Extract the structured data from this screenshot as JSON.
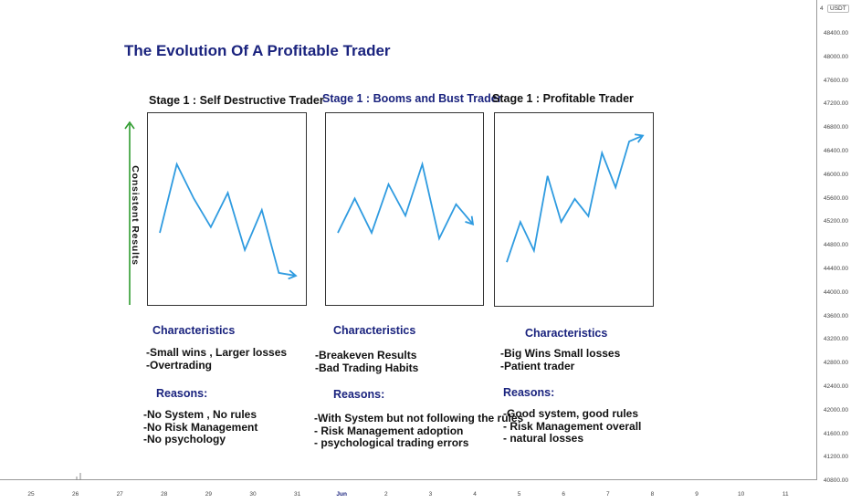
{
  "title": "The Evolution Of A Profitable Trader",
  "y_axis_label": "Consistent Results",
  "colors": {
    "line": "#2f9be0",
    "arrow": "#2e9b2e",
    "title": "#1a237e"
  },
  "stages": [
    {
      "title": "Stage 1 : Self Destructive Trader",
      "characteristics_heading": "Characteristics",
      "characteristics": [
        "-Small wins , Larger losses",
        "-Overtrading"
      ],
      "reasons_heading": "Reasons:",
      "reasons": [
        "-No System , No rules",
        "-No Risk Management",
        "-No psychology"
      ]
    },
    {
      "title": "Stage 1 : Booms and Bust Trader",
      "characteristics_heading": "Characteristics",
      "characteristics": [
        "-Breakeven Results",
        "-Bad Trading Habits"
      ],
      "reasons_heading": "Reasons:",
      "reasons": [
        "-With System but not following the rules",
        "- Risk Management adoption",
        "- psychological trading errors"
      ]
    },
    {
      "title": "Stage 1 : Profitable Trader",
      "characteristics_heading": "Characteristics",
      "characteristics": [
        "-Big Wins Small losses",
        "-Patient trader"
      ],
      "reasons_heading": "Reasons:",
      "reasons": [
        "-Good system, good rules",
        "- Risk Management overall",
        "- natural losses"
      ]
    }
  ],
  "price_axis": {
    "currency": "USDT",
    "ticks": [
      "48400.00",
      "48000.00",
      "47600.00",
      "47200.00",
      "46800.00",
      "46400.00",
      "46000.00",
      "45600.00",
      "45200.00",
      "44800.00",
      "44400.00",
      "44000.00",
      "43600.00",
      "43200.00",
      "42800.00",
      "42400.00",
      "42000.00",
      "41600.00",
      "41200.00",
      "40800.00"
    ]
  },
  "time_axis": {
    "ticks": [
      "25",
      "26",
      "27",
      "28",
      "29",
      "30",
      "31",
      "Jun",
      "2",
      "3",
      "4",
      "5",
      "6",
      "7",
      "8",
      "9",
      "10",
      "11"
    ]
  },
  "chart_data": [
    {
      "type": "line",
      "title": "Stage 1 : Self Destructive Trader",
      "x": [
        0,
        1,
        2,
        3,
        4,
        5,
        6,
        7,
        8
      ],
      "y": [
        44800,
        46000,
        45400,
        44900,
        45500,
        44500,
        45200,
        44100,
        44050
      ],
      "ylim": [
        43700,
        46700
      ],
      "trend": "down"
    },
    {
      "type": "line",
      "title": "Stage 1 : Booms and Bust Trader",
      "x": [
        0,
        1,
        2,
        3,
        4,
        5,
        6,
        7,
        8
      ],
      "y": [
        44800,
        45400,
        44800,
        45650,
        45100,
        46000,
        44700,
        45300,
        44950
      ],
      "ylim": [
        43700,
        46700
      ],
      "trend": "flat"
    },
    {
      "type": "line",
      "title": "Stage 1 : Profitable Trader",
      "x": [
        0,
        1,
        2,
        3,
        4,
        5,
        6,
        7,
        8,
        9,
        10
      ],
      "y": [
        44300,
        45000,
        44500,
        45800,
        45000,
        45400,
        45100,
        46200,
        45600,
        46400,
        46500
      ],
      "ylim": [
        43700,
        46700
      ],
      "trend": "up"
    }
  ]
}
